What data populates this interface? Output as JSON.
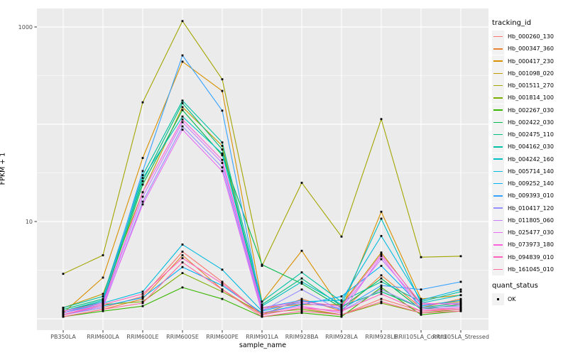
{
  "figure": {
    "panel_bg": "#EBEBEB",
    "grid_color": "#FFFFFF",
    "legend_key_bg": "#F2F2F2",
    "tick_text_color": "#4D4D4D",
    "point_color": "#000000"
  },
  "chart_data": {
    "type": "line",
    "title": "",
    "xlabel": "sample_name",
    "ylabel": "FPKM + 1",
    "y_scale": "log10",
    "ylim": [
      0.76,
      1550
    ],
    "y_major_gridlines": [
      1,
      10,
      100,
      1000
    ],
    "y_minor_gridlines": [
      3.162,
      31.62,
      316.2
    ],
    "y_labeled_breaks": [
      10,
      1000
    ],
    "y_tick_labels": [
      "10",
      "1000"
    ],
    "grid": true,
    "legend_position": "right",
    "color_legend_title": "tracking_id",
    "point_legend": {
      "title": "quant_status",
      "items": [
        "OK"
      ]
    },
    "categories": [
      "PB350LA",
      "RRIM600LA",
      "RRIM600LE",
      "RRIM600SE",
      "RRIM600PE",
      "RRIM901LA",
      "RRIM928BA",
      "RRIM928LA",
      "RRIM928LE",
      "RRII105LA_Control",
      "RRII105LA_Stressed"
    ],
    "series": [
      {
        "name": "Hb_000260_130",
        "color": "#F8766D",
        "values": [
          1.1,
          1.3,
          1.7,
          4.9,
          2.4,
          1.1,
          1.3,
          1.1,
          1.6,
          1.2,
          1.3
        ]
      },
      {
        "name": "Hb_000347_360",
        "color": "#EA8331",
        "values": [
          1.05,
          1.25,
          1.6,
          4.5,
          2.0,
          1.1,
          1.6,
          1.2,
          2.8,
          1.3,
          1.6
        ]
      },
      {
        "name": "Hb_000417_230",
        "color": "#D89000",
        "values": [
          1.15,
          2.65,
          45,
          440,
          220,
          1.5,
          5.0,
          1.25,
          12.6,
          1.6,
          1.75
        ]
      },
      {
        "name": "Hb_001098_020",
        "color": "#C09B00",
        "values": [
          1.3,
          1.8,
          20,
          150,
          60,
          1.3,
          1.4,
          1.4,
          4.8,
          1.4,
          1.5
        ]
      },
      {
        "name": "Hb_001511_270",
        "color": "#A3A500",
        "values": [
          2.9,
          4.5,
          168,
          1150,
          290,
          3.5,
          25,
          7.0,
          113,
          4.3,
          4.4
        ]
      },
      {
        "name": "Hb_001814_100",
        "color": "#7CAE00",
        "values": [
          1.1,
          1.4,
          1.5,
          2.95,
          1.9,
          1.15,
          1.25,
          1.1,
          1.45,
          1.15,
          1.25
        ]
      },
      {
        "name": "Hb_002267_030",
        "color": "#39B600",
        "values": [
          1.05,
          1.2,
          1.35,
          2.1,
          1.6,
          1.05,
          1.15,
          1.05,
          2.1,
          1.1,
          1.2
        ]
      },
      {
        "name": "Hb_002422_030",
        "color": "#00BB4E",
        "values": [
          1.2,
          1.5,
          24,
          140,
          48,
          3.6,
          2.3,
          1.3,
          2.6,
          1.25,
          1.4
        ]
      },
      {
        "name": "Hb_002475_110",
        "color": "#00BF7D",
        "values": [
          1.25,
          1.6,
          26,
          165,
          55,
          1.4,
          2.6,
          1.35,
          1.9,
          1.3,
          1.45
        ]
      },
      {
        "name": "Hb_004162_030",
        "color": "#00C1A3",
        "values": [
          1.3,
          1.7,
          30,
          175,
          65,
          1.5,
          3.0,
          1.5,
          2.4,
          1.5,
          1.9
        ]
      },
      {
        "name": "Hb_004242_160",
        "color": "#00BFC4",
        "values": [
          1.2,
          1.55,
          28,
          120,
          50,
          1.35,
          2.4,
          1.4,
          10.7,
          1.45,
          1.75
        ]
      },
      {
        "name": "Hb_005714_140",
        "color": "#00BAE0",
        "values": [
          1.15,
          1.45,
          1.9,
          5.8,
          3.2,
          1.2,
          1.5,
          1.55,
          7.1,
          1.55,
          2.0
        ]
      },
      {
        "name": "Hb_009252_140",
        "color": "#00B0F6",
        "values": [
          1.1,
          1.35,
          1.65,
          3.4,
          2.2,
          1.15,
          1.4,
          1.7,
          3.5,
          1.35,
          1.55
        ]
      },
      {
        "name": "Hb_009393_010",
        "color": "#35A2FF",
        "values": [
          1.15,
          1.5,
          33,
          510,
          138,
          1.3,
          1.55,
          1.25,
          2.2,
          2.0,
          2.4
        ]
      },
      {
        "name": "Hb_010417_120",
        "color": "#9590FF",
        "values": [
          1.1,
          1.3,
          16,
          95,
          36,
          1.2,
          2.0,
          1.2,
          2.0,
          1.3,
          1.35
        ]
      },
      {
        "name": "Hb_011805_060",
        "color": "#C77CFF",
        "values": [
          1.15,
          1.4,
          18,
          105,
          40,
          1.25,
          1.45,
          1.3,
          4.1,
          1.4,
          1.45
        ]
      },
      {
        "name": "Hb_025477_030",
        "color": "#E76BF3",
        "values": [
          1.1,
          1.35,
          15,
          88,
          33,
          1.15,
          1.35,
          1.15,
          4.4,
          1.25,
          1.3
        ]
      },
      {
        "name": "Hb_073973_180",
        "color": "#FA62DB",
        "values": [
          1.2,
          1.45,
          20,
          112,
          43,
          1.3,
          1.5,
          1.35,
          4.6,
          1.45,
          1.4
        ]
      },
      {
        "name": "Hb_094839_010",
        "color": "#FF62BC",
        "values": [
          1.1,
          1.4,
          1.8,
          4.2,
          2.3,
          1.1,
          1.3,
          1.2,
          1.8,
          1.2,
          1.25
        ]
      },
      {
        "name": "Hb_161045_010",
        "color": "#FF6A98",
        "values": [
          1.05,
          1.25,
          1.45,
          3.8,
          2.0,
          1.05,
          1.2,
          1.1,
          1.5,
          1.15,
          1.2
        ]
      }
    ]
  }
}
